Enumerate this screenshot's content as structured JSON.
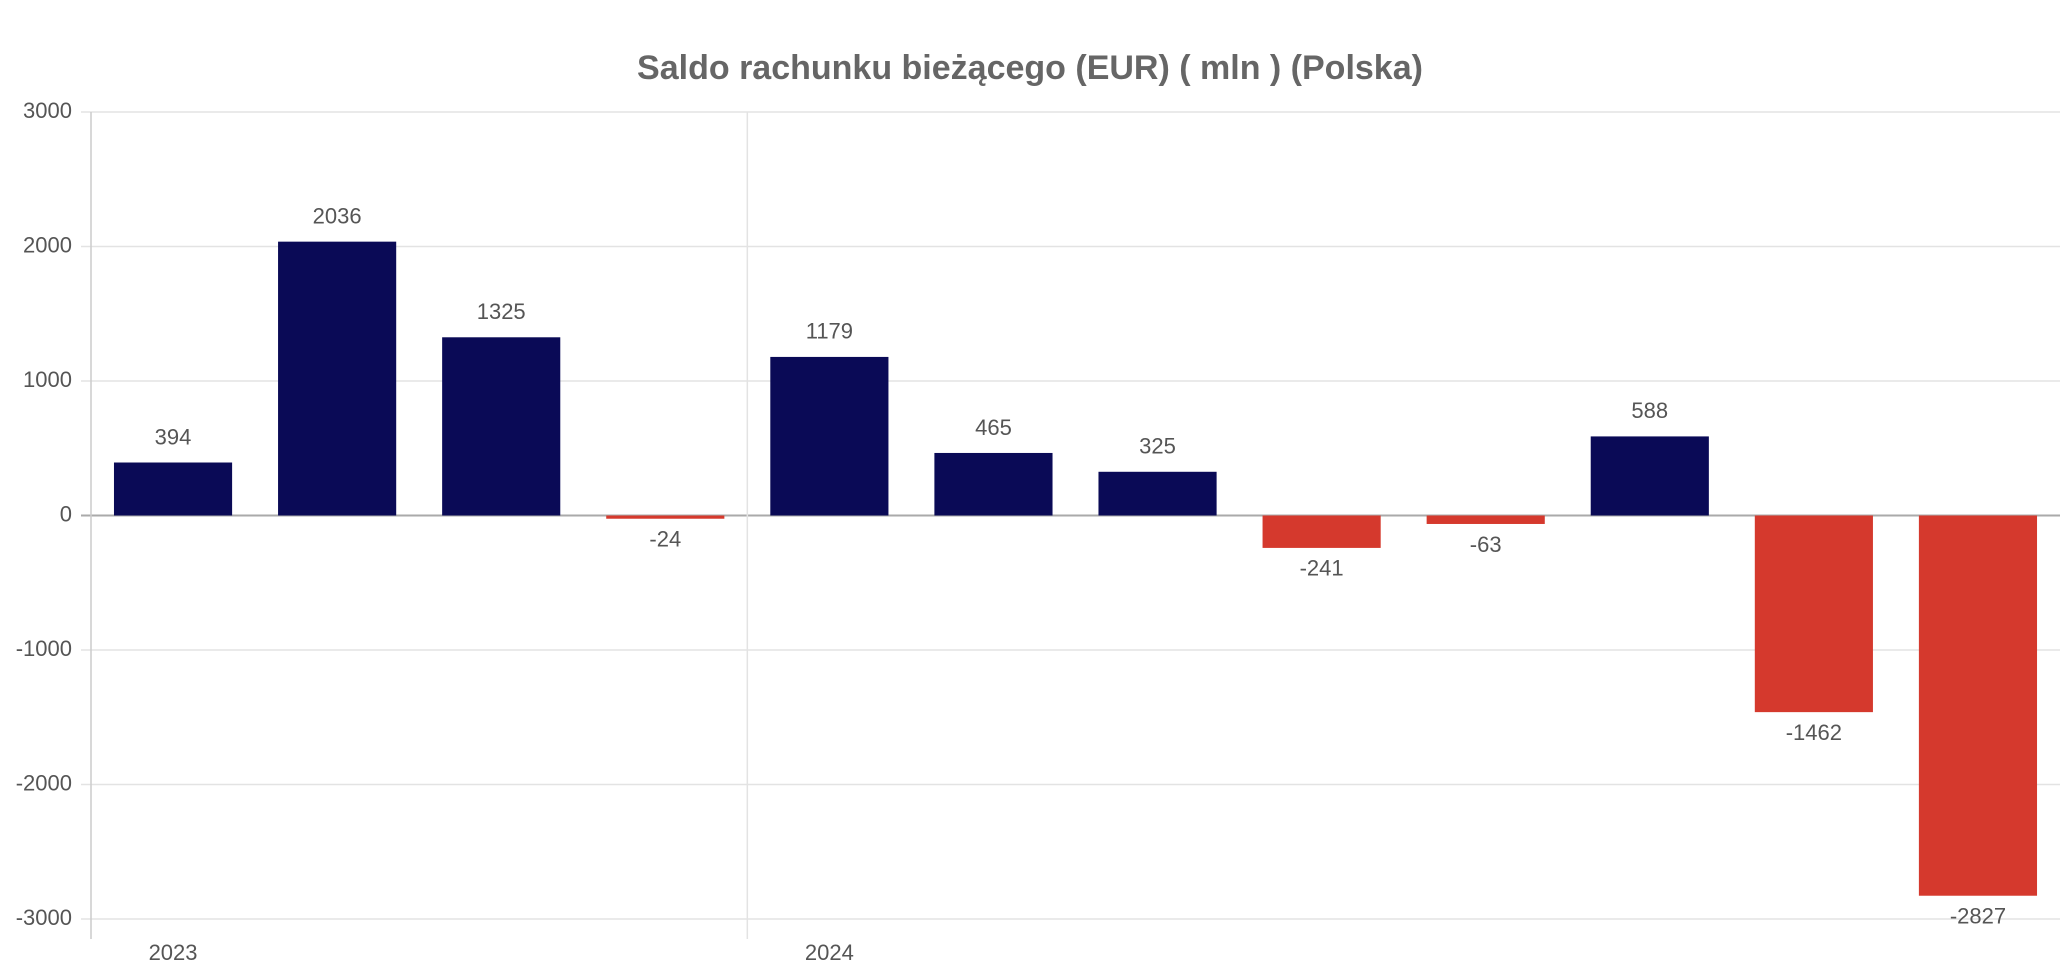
{
  "chart_data": {
    "type": "bar",
    "title": "Saldo rachunku bieżącego (EUR) ( mln ) (Polska)",
    "categories": [
      "2023",
      null,
      null,
      null,
      "2024",
      null,
      null,
      null,
      null,
      null,
      null,
      null
    ],
    "values": [
      394,
      2036,
      1325,
      -24,
      1179,
      465,
      325,
      -241,
      -63,
      588,
      -1462,
      -2827
    ],
    "color_positive": "#0a0a56",
    "color_negative": "#d5392d",
    "ylim": [
      -3000,
      3000
    ],
    "yticks": [
      -3000,
      -2000,
      -1000,
      0,
      1000,
      2000,
      3000
    ],
    "grid": true
  }
}
